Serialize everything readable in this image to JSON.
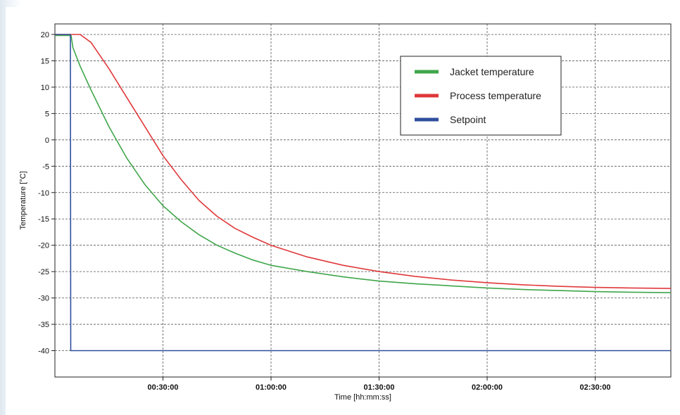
{
  "chart_data": {
    "type": "line",
    "xlabel": "Time [hh:mm:ss]",
    "ylabel": "Temperature [°C]",
    "xlim": [
      0,
      171
    ],
    "ylim": [
      -45,
      22
    ],
    "y_ticks": [
      20,
      15,
      10,
      5,
      0,
      -5,
      -10,
      -15,
      -20,
      -25,
      -30,
      -35,
      -40
    ],
    "x_ticks": [
      {
        "value": 30,
        "label": "00:30:00"
      },
      {
        "value": 60,
        "label": "01:00:00"
      },
      {
        "value": 90,
        "label": "01:30:00"
      },
      {
        "value": 120,
        "label": "02:00:00"
      },
      {
        "value": 150,
        "label": "02:30:00"
      }
    ],
    "grid": true,
    "legend_position": "top-right",
    "series": [
      {
        "name": "Jacket temperature",
        "color": "#3fa64a",
        "x": [
          0,
          4.5,
          5,
          7,
          10,
          15,
          20,
          25,
          30,
          35,
          40,
          45,
          50,
          55,
          60,
          70,
          80,
          90,
          100,
          110,
          120,
          130,
          140,
          150,
          160,
          171
        ],
        "y": [
          19.8,
          19.8,
          17.5,
          14,
          9.5,
          2.5,
          -3.5,
          -8.5,
          -12.5,
          -15.5,
          -18,
          -20,
          -21.5,
          -22.8,
          -23.8,
          -25,
          -26,
          -26.8,
          -27.3,
          -27.7,
          -28.1,
          -28.4,
          -28.6,
          -28.8,
          -28.9,
          -29
        ]
      },
      {
        "name": "Process temperature",
        "color": "#e0383a",
        "x": [
          0,
          7,
          10,
          15,
          20,
          25,
          30,
          35,
          40,
          45,
          50,
          55,
          60,
          70,
          80,
          90,
          100,
          110,
          120,
          130,
          140,
          150,
          160,
          171
        ],
        "y": [
          20,
          20,
          18.5,
          13.5,
          8,
          2.5,
          -3,
          -7.5,
          -11.5,
          -14.5,
          -16.8,
          -18.5,
          -20,
          -22.2,
          -23.8,
          -25,
          -25.9,
          -26.6,
          -27.1,
          -27.5,
          -27.8,
          -28,
          -28.1,
          -28.2
        ]
      },
      {
        "name": "Setpoint",
        "color": "#2f4f9e",
        "x": [
          0,
          4.3,
          4.4,
          171
        ],
        "y": [
          20,
          20,
          -40,
          -40
        ]
      }
    ]
  }
}
